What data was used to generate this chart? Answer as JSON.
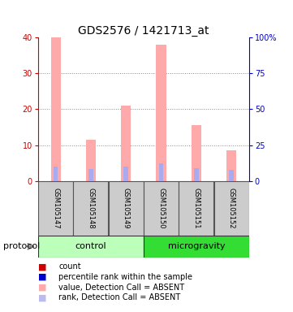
{
  "title": "GDS2576 / 1421713_at",
  "samples": [
    "GSM105147",
    "GSM105148",
    "GSM105149",
    "GSM105150",
    "GSM105151",
    "GSM105152"
  ],
  "groups": [
    "control",
    "control",
    "control",
    "microgravity",
    "microgravity",
    "microgravity"
  ],
  "group_colors": {
    "control": "#bbffbb",
    "microgravity": "#33dd33"
  },
  "pink_bar_heights": [
    40,
    11.5,
    21,
    38,
    15.5,
    8.5
  ],
  "blue_bar_heights": [
    9.8,
    8.2,
    10.2,
    12.2,
    9.0,
    7.5
  ],
  "pink_color": "#ffaaaa",
  "blue_color": "#aaaaee",
  "red_color": "#cc0000",
  "blue_dark": "#0000cc",
  "ylim_left": [
    0,
    40
  ],
  "ylim_right": [
    0,
    100
  ],
  "yticks_left": [
    0,
    10,
    20,
    30,
    40
  ],
  "yticks_right": [
    0,
    25,
    50,
    75,
    100
  ],
  "ytick_labels_right": [
    "0",
    "25",
    "50",
    "75",
    "100%"
  ],
  "legend_items": [
    {
      "label": "count",
      "color": "#cc0000"
    },
    {
      "label": "percentile rank within the sample",
      "color": "#0000cc"
    },
    {
      "label": "value, Detection Call = ABSENT",
      "color": "#ffaaaa"
    },
    {
      "label": "rank, Detection Call = ABSENT",
      "color": "#bbbbee"
    }
  ],
  "protocol_label": "protocol",
  "background_color": "#ffffff",
  "grid_color": "#888888",
  "sample_box_color": "#cccccc",
  "sample_box_border": "#555555"
}
